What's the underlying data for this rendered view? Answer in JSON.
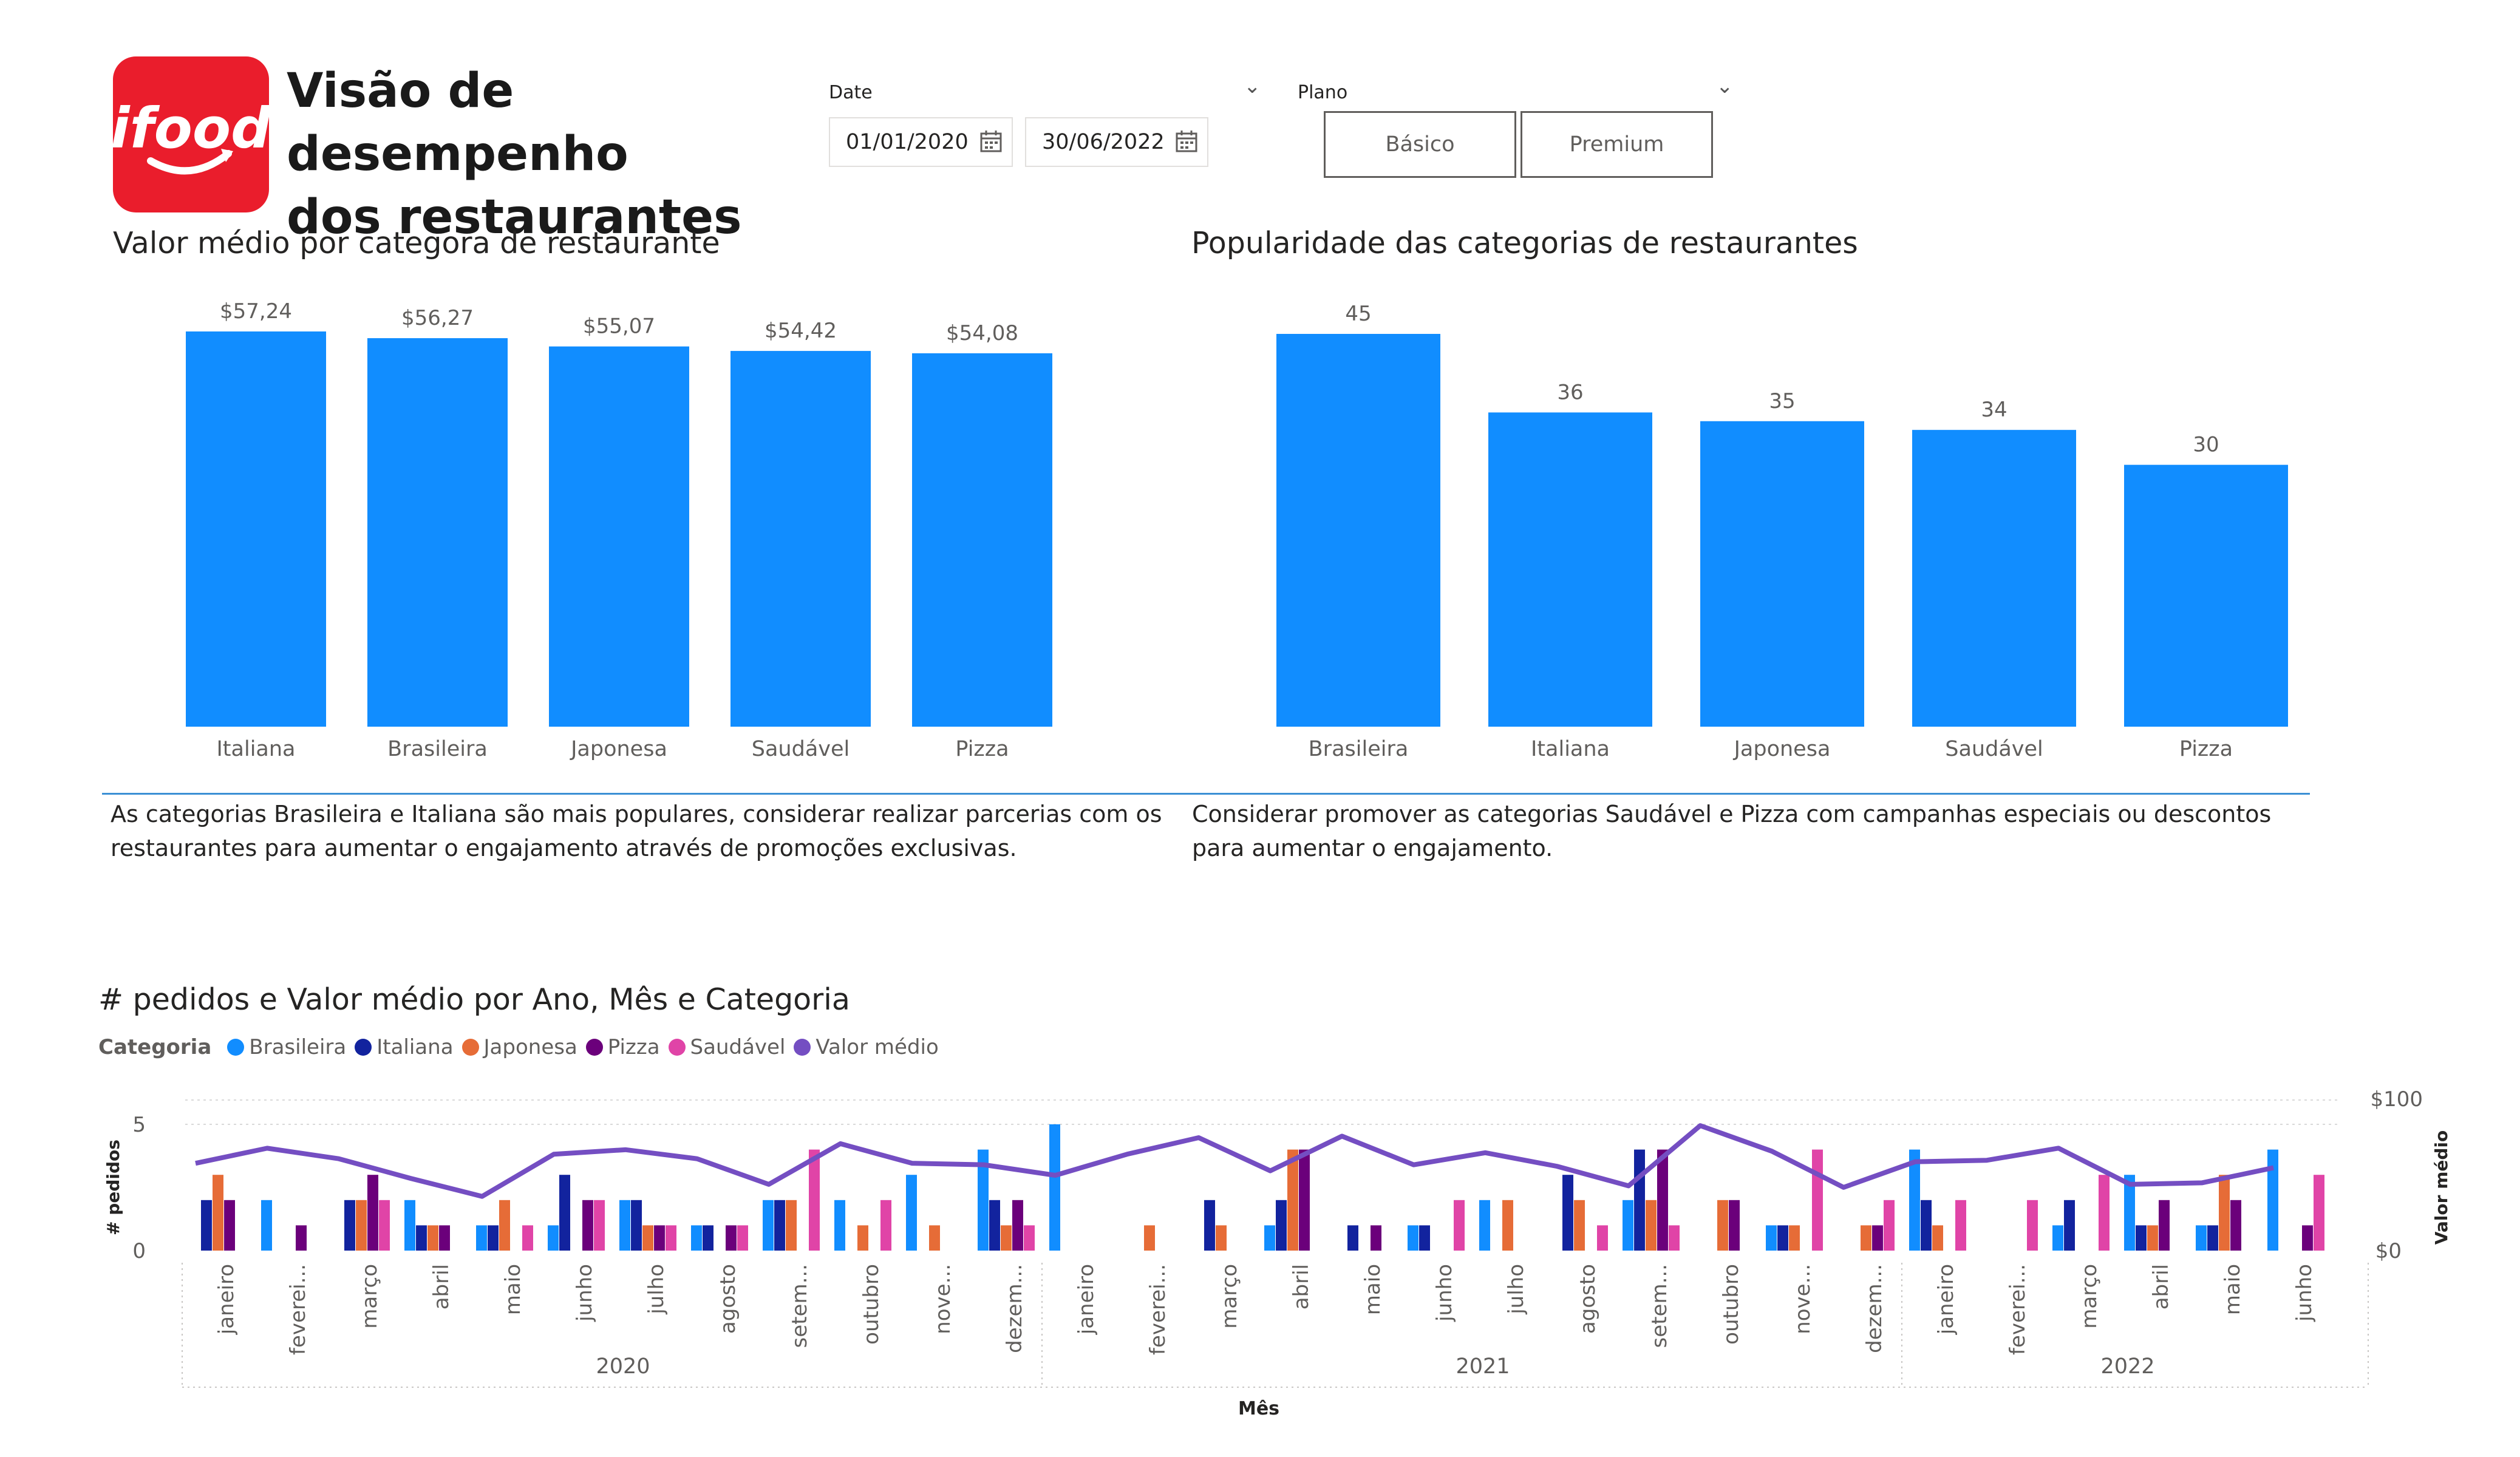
{
  "header": {
    "title_line1": "Visão de desempenho",
    "title_line2": "dos restaurantes",
    "logo_text": "ifood"
  },
  "filters": {
    "date_label": "Date",
    "date_start": "01/01/2020",
    "date_end": "30/06/2022",
    "plan_label": "Plano",
    "plan_options": [
      "Básico",
      "Premium"
    ]
  },
  "colors": {
    "bar": "#118dff",
    "Brasileira": "#118dff",
    "Italiana": "#12239e",
    "Japonesa": "#e66c37",
    "Pizza": "#6b007b",
    "Saudável": "#e044a7",
    "Valor médio": "#744ec2"
  },
  "notes": {
    "left": "As categorias Brasileira e Italiana são mais populares, considerar realizar parcerias com os restaurantes para aumentar o engajamento através de promoções exclusivas.",
    "right": "Considerar promover as categorias Saudável e Pizza com campanhas especiais ou descontos para aumentar o engajamento."
  },
  "chart_data": [
    {
      "type": "bar",
      "title": "Valor médio por categora de restaurante",
      "categories": [
        "Italiana",
        "Brasileira",
        "Japonesa",
        "Saudável",
        "Pizza"
      ],
      "values": [
        57.24,
        56.27,
        55.07,
        54.42,
        54.08
      ],
      "data_labels": [
        "$57,24",
        "$56,27",
        "$55,07",
        "$54,42",
        "$54,08"
      ],
      "ylim": [
        0,
        57.24
      ],
      "grid": false
    },
    {
      "type": "bar",
      "title": "Popularidade das categorias de restaurantes",
      "categories": [
        "Brasileira",
        "Italiana",
        "Japonesa",
        "Saudável",
        "Pizza"
      ],
      "values": [
        45,
        36,
        35,
        34,
        30
      ],
      "data_labels": [
        "45",
        "36",
        "35",
        "34",
        "30"
      ],
      "ylim": [
        0,
        45
      ],
      "grid": false
    },
    {
      "type": "bar",
      "title": "# pedidos e Valor médio por Ano, Mês e Categoria",
      "legend_title": "Categoria",
      "legend_position": "top-left",
      "xlabel": "Mês",
      "ylabel": "# pedidos",
      "y2label": "Valor médio",
      "ylim": [
        0,
        5
      ],
      "y_ticks": [
        "0",
        "5"
      ],
      "y2lim": [
        0,
        100
      ],
      "y2_ticks": [
        "$0",
        "$100"
      ],
      "grid": true,
      "years": [
        {
          "label": "2020",
          "months": 12
        },
        {
          "label": "2021",
          "months": 12
        },
        {
          "label": "2022",
          "months": 6
        }
      ],
      "categories": [
        "janeiro",
        "feverei...",
        "março",
        "abril",
        "maio",
        "junho",
        "julho",
        "agosto",
        "setem...",
        "outubro",
        "nove...",
        "dezem...",
        "janeiro",
        "feverei...",
        "março",
        "abril",
        "maio",
        "junho",
        "julho",
        "agosto",
        "setem...",
        "outubro",
        "nove...",
        "dezem...",
        "janeiro",
        "feverei...",
        "março",
        "abril",
        "maio",
        "junho"
      ],
      "series": [
        {
          "name": "Brasileira",
          "values": [
            0,
            2,
            0,
            2,
            1,
            1,
            2,
            1,
            2,
            2,
            3,
            4,
            5,
            0,
            0,
            1,
            0,
            1,
            2,
            0,
            2,
            0,
            1,
            0,
            4,
            0,
            1,
            3,
            1,
            4
          ]
        },
        {
          "name": "Italiana",
          "values": [
            2,
            0,
            2,
            1,
            1,
            3,
            2,
            1,
            2,
            0,
            0,
            2,
            0,
            0,
            2,
            2,
            1,
            1,
            0,
            3,
            4,
            0,
            1,
            0,
            2,
            0,
            2,
            1,
            1,
            0
          ]
        },
        {
          "name": "Japonesa",
          "values": [
            3,
            0,
            2,
            1,
            2,
            0,
            1,
            0,
            2,
            1,
            1,
            1,
            0,
            1,
            1,
            4,
            0,
            0,
            2,
            2,
            2,
            2,
            1,
            1,
            1,
            0,
            0,
            1,
            3,
            0
          ]
        },
        {
          "name": "Pizza",
          "values": [
            2,
            1,
            3,
            1,
            0,
            2,
            1,
            1,
            0,
            0,
            0,
            2,
            0,
            0,
            0,
            4,
            1,
            0,
            0,
            0,
            4,
            2,
            0,
            1,
            0,
            0,
            0,
            2,
            2,
            1
          ]
        },
        {
          "name": "Saudável",
          "values": [
            0,
            0,
            2,
            0,
            1,
            2,
            1,
            1,
            4,
            2,
            0,
            1,
            0,
            0,
            0,
            0,
            0,
            2,
            0,
            1,
            1,
            0,
            4,
            2,
            2,
            2,
            3,
            0,
            0,
            3
          ]
        },
        {
          "name": "Valor médio",
          "axis": "secondary",
          "type": "line",
          "values": [
            58,
            68,
            61,
            48,
            36,
            64,
            67,
            61,
            44,
            71,
            58,
            57,
            50,
            64,
            75,
            53,
            76,
            57,
            65,
            56,
            43,
            83,
            66,
            42,
            59,
            60,
            68,
            44,
            45,
            55
          ]
        }
      ]
    }
  ]
}
